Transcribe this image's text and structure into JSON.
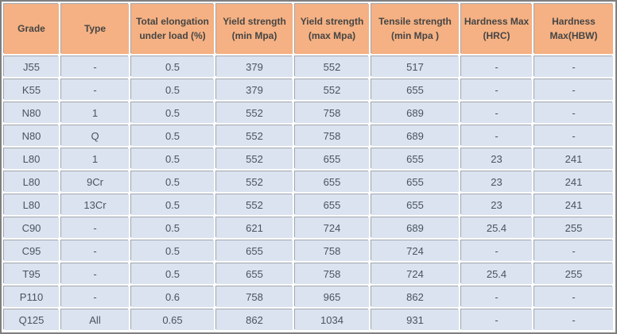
{
  "chart_data": {
    "type": "table",
    "columns": [
      "Grade",
      "Type",
      "Total elongation under load (%)",
      "Yield strength (min Mpa)",
      "Yield strength (max Mpa)",
      "Tensile strength (min Mpa )",
      "Hardness Max (HRC)",
      "Hardness Max(HBW)"
    ],
    "rows": [
      [
        "J55",
        "-",
        "0.5",
        "379",
        "552",
        "517",
        "-",
        "-"
      ],
      [
        "K55",
        "-",
        "0.5",
        "379",
        "552",
        "655",
        "-",
        "-"
      ],
      [
        "N80",
        "1",
        "0.5",
        "552",
        "758",
        "689",
        "-",
        "-"
      ],
      [
        "N80",
        "Q",
        "0.5",
        "552",
        "758",
        "689",
        "-",
        "-"
      ],
      [
        "L80",
        "1",
        "0.5",
        "552",
        "655",
        "655",
        "23",
        "241"
      ],
      [
        "L80",
        "9Cr",
        "0.5",
        "552",
        "655",
        "655",
        "23",
        "241"
      ],
      [
        "L80",
        "13Cr",
        "0.5",
        "552",
        "655",
        "655",
        "23",
        "241"
      ],
      [
        "C90",
        "-",
        "0.5",
        "621",
        "724",
        "689",
        "25.4",
        "255"
      ],
      [
        "C95",
        "-",
        "0.5",
        "655",
        "758",
        "724",
        "-",
        "-"
      ],
      [
        "T95",
        "-",
        "0.5",
        "655",
        "758",
        "724",
        "25.4",
        "255"
      ],
      [
        "P110",
        "-",
        "0.6",
        "758",
        "965",
        "862",
        "-",
        "-"
      ],
      [
        "Q125",
        "All",
        "0.65",
        "862",
        "1034",
        "931",
        "-",
        "-"
      ]
    ]
  },
  "colors": {
    "header_bg": "#F5B183",
    "row_bg": "#DAE3EF",
    "grid_line": "#9FA5AD",
    "outer_border": "#7F7F7F",
    "header_text": "#454545",
    "body_text": "#4A5361",
    "gap": "#FFFFFF"
  }
}
